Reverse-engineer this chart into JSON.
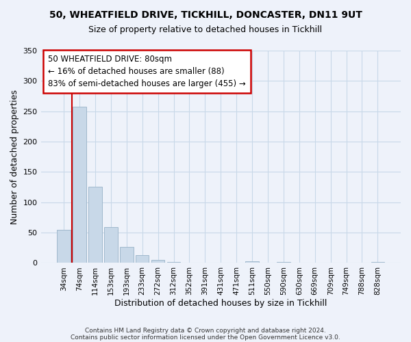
{
  "title_line1": "50, WHEATFIELD DRIVE, TICKHILL, DONCASTER, DN11 9UT",
  "title_line2": "Size of property relative to detached houses in Tickhill",
  "xlabel": "Distribution of detached houses by size in Tickhill",
  "ylabel": "Number of detached properties",
  "bar_labels": [
    "34sqm",
    "74sqm",
    "114sqm",
    "153sqm",
    "193sqm",
    "233sqm",
    "272sqm",
    "312sqm",
    "352sqm",
    "391sqm",
    "431sqm",
    "471sqm",
    "511sqm",
    "550sqm",
    "590sqm",
    "630sqm",
    "669sqm",
    "709sqm",
    "749sqm",
    "788sqm",
    "828sqm"
  ],
  "bar_values": [
    55,
    258,
    126,
    59,
    27,
    13,
    5,
    2,
    1,
    0,
    0,
    0,
    3,
    0,
    2,
    0,
    0,
    0,
    1,
    0,
    2
  ],
  "bar_color": "#c8d8e8",
  "bar_edge_color": "#a0b8cc",
  "grid_color": "#c8d8e8",
  "background_color": "#eef2fa",
  "vline_x": 0.5,
  "vline_color": "#cc0000",
  "annotation_title": "50 WHEATFIELD DRIVE: 80sqm",
  "annotation_line1": "← 16% of detached houses are smaller (88)",
  "annotation_line2": "83% of semi-detached houses are larger (455) →",
  "annotation_box_color": "#ffffff",
  "annotation_box_edge": "#cc0000",
  "ylim": [
    0,
    350
  ],
  "yticks": [
    0,
    50,
    100,
    150,
    200,
    250,
    300,
    350
  ],
  "footer_line1": "Contains HM Land Registry data © Crown copyright and database right 2024.",
  "footer_line2": "Contains public sector information licensed under the Open Government Licence v3.0."
}
